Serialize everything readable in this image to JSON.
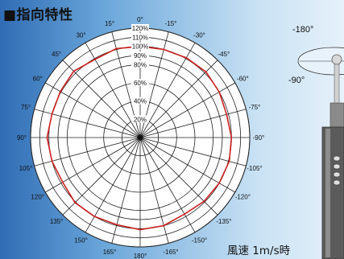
{
  "title": "■指向特性",
  "speed_label": "風速 1m/s時",
  "chart_data": {
    "type": "polar",
    "title": "指向特性",
    "radial_ticks": [
      {
        "value": 120,
        "label": "120%"
      },
      {
        "value": 110,
        "label": "110%"
      },
      {
        "value": 100,
        "label": "100%"
      },
      {
        "value": 90,
        "label": "90%"
      },
      {
        "value": 80,
        "label": "80%"
      },
      {
        "value": 60,
        "label": "60%"
      },
      {
        "value": 40,
        "label": "40%"
      },
      {
        "value": 20,
        "label": "20%"
      }
    ],
    "radial_range": [
      0,
      120
    ],
    "angle_labels": [
      "0°",
      "-15°",
      "-30°",
      "-45°",
      "-60°",
      "-75°",
      "-90°",
      "-105°",
      "-120°",
      "-135°",
      "-150°",
      "-165°",
      "180°",
      "165°",
      "150°",
      "135°",
      "120°",
      "105°",
      "90°",
      "75°",
      "60°",
      "45°",
      "30°",
      "15°"
    ],
    "series": [
      {
        "color": "#cc1f1f",
        "angles": [
          0,
          15,
          30,
          45,
          60,
          75,
          90,
          105,
          120,
          135,
          150,
          165,
          180,
          195,
          210,
          225,
          240,
          255,
          270,
          285,
          300,
          315,
          330,
          345
        ],
        "values": [
          100,
          101,
          99,
          103,
          101,
          100,
          102,
          100,
          98,
          101,
          100,
          99,
          101,
          100,
          97,
          99,
          100,
          101,
          100,
          98,
          100,
          102,
          101,
          100
        ]
      }
    ],
    "line_color": "#222222",
    "grid": true
  },
  "sensor_labels": {
    "neg180": "-180°",
    "neg90": "-90°"
  },
  "colors": {
    "background_left": "#2f6cb4",
    "background_right": "#e6f1fa",
    "plot_face": "#ffffff",
    "grid": "#222222",
    "data_line": "#cc1f1f"
  }
}
